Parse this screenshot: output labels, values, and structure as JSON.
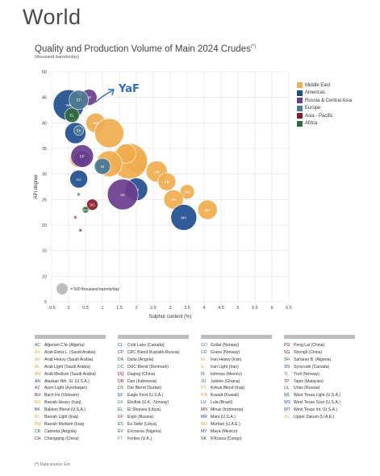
{
  "page": {
    "title": "World",
    "subtitle": "Quality and Production Volume of Main 2024 Crudes",
    "subtitle_note": "(*)",
    "units": "(thousand barrels/day)",
    "source": "(*) Data source: Eni"
  },
  "colors": {
    "Middle East": "#f0ad4e",
    "Americas": "#1f4e8f",
    "Russia & Central Asia": "#6a3d8e",
    "Europe": "#4e7c90",
    "Asia - Pacific": "#8b1c2a",
    "Africa": "#2f6b3a"
  },
  "chart_data": {
    "type": "scatter",
    "xlabel": "Sulphur content (%)",
    "ylabel": "API degree",
    "xlim": [
      -0.5,
      6.5
    ],
    "ylim": [
      5,
      50
    ],
    "xticks": [
      "-0.5",
      "0",
      "0.5",
      "1",
      "1.5",
      "2",
      "2.5",
      "3",
      "3.5",
      "4",
      "4.5",
      "5",
      "5.5",
      "6",
      "6.5"
    ],
    "yticks": [
      "5",
      "10",
      "15",
      "20",
      "25",
      "30",
      "35",
      "40",
      "45",
      "50"
    ],
    "size_legend": "= 500 thousand barrels/day",
    "legend_placement": "top-right",
    "annotation": "YaF",
    "series": [
      {
        "name": "Middle East",
        "points": [
          {
            "label": "ZU",
            "x": 2.0,
            "y": 32.5
          },
          {
            "label": "AL",
            "x": 1.8,
            "y": 32.5
          },
          {
            "label": "AM",
            "x": 2.6,
            "y": 30.5
          },
          {
            "label": "KB",
            "x": 2.9,
            "y": 28.5
          },
          {
            "label": "BM",
            "x": 3.5,
            "y": 26.5
          },
          {
            "label": "AH",
            "x": 3.1,
            "y": 25
          },
          {
            "label": "BH",
            "x": 4.1,
            "y": 23
          },
          {
            "label": "MU",
            "x": 0.8,
            "y": 40
          },
          {
            "label": "",
            "x": 1.2,
            "y": 38
          },
          {
            "label": "",
            "x": 1.7,
            "y": 34
          },
          {
            "label": "",
            "x": 1.2,
            "y": 32
          },
          {
            "label": "",
            "x": 0.3,
            "y": 33
          }
        ]
      },
      {
        "name": "Americas",
        "points": [
          {
            "label": "MV",
            "x": 3.4,
            "y": 21.5
          },
          {
            "label": "MX",
            "x": 2.0,
            "y": 27
          },
          {
            "label": "WL",
            "x": 0.0,
            "y": 43.5
          },
          {
            "label": "LU",
            "x": 0.3,
            "y": 29
          },
          {
            "label": "",
            "x": 0.4,
            "y": 33
          },
          {
            "label": "",
            "x": 0.2,
            "y": 38
          }
        ]
      },
      {
        "name": "Russia & Central Asia",
        "points": [
          {
            "label": "CP",
            "x": 0.6,
            "y": 45
          },
          {
            "label": "UL",
            "x": 1.6,
            "y": 26
          },
          {
            "label": "EP",
            "x": 0.4,
            "y": 33.5
          }
        ]
      },
      {
        "name": "Europe",
        "points": [
          {
            "label": "EF",
            "x": 0.3,
            "y": 44.5
          },
          {
            "label": "AN",
            "x": 1.0,
            "y": 31.5
          },
          {
            "label": "IS",
            "x": 1.0,
            "y": 31.5
          },
          {
            "label": "EK",
            "x": 0.3,
            "y": 38.5
          }
        ]
      },
      {
        "name": "Asia - Pacific",
        "points": [
          {
            "label": "SG",
            "x": 0.7,
            "y": 24
          },
          {
            "label": "DR",
            "x": 0.2,
            "y": 21.5
          },
          {
            "label": "PG",
            "x": 0.35,
            "y": 19
          }
        ]
      },
      {
        "name": "Africa",
        "points": [
          {
            "label": "DA",
            "x": 0.5,
            "y": 23
          },
          {
            "label": "DS",
            "x": 0.3,
            "y": 26
          },
          {
            "label": "EL",
            "x": 0.1,
            "y": 41.5
          }
        ]
      }
    ]
  },
  "key_columns": [
    [
      {
        "code": "AC",
        "name": "Algerian C'te (Algeria)",
        "cls": "green"
      },
      {
        "code": "AX",
        "name": "Arab Extra L. (Saudi Arabia)",
        "cls": "orange"
      },
      {
        "code": "AH",
        "name": "Arab Heavy (Saudi Arabia)",
        "cls": "orange"
      },
      {
        "code": "AL",
        "name": "Arab Light (Saudi Arabia)",
        "cls": "orange"
      },
      {
        "code": "AM",
        "name": "Arab Medium (Saudi Arabia)",
        "cls": "orange"
      },
      {
        "code": "AN",
        "name": "Alaskan Nth. Sl. (U.S.A.)",
        "cls": "blue"
      },
      {
        "code": "AZ",
        "name": "Azeri Light (Azerbaijan)",
        "cls": "purple"
      },
      {
        "code": "BH",
        "name": "Bach Ho (Vietnam)",
        "cls": "red"
      },
      {
        "code": "BH",
        "name": "Basrah Heavy (Iraq)",
        "cls": "orange"
      },
      {
        "code": "BK",
        "name": "Bakken Blend (U.S.A.)",
        "cls": "blue"
      },
      {
        "code": "BL",
        "name": "Basrah Light (Iraq)",
        "cls": "orange"
      },
      {
        "code": "BM",
        "name": "Basrah Medium (Iraq)",
        "cls": "orange"
      },
      {
        "code": "CB",
        "name": "Cabinda (Angola)",
        "cls": "green"
      },
      {
        "code": "CH",
        "name": "Changqing (China)",
        "cls": "red"
      }
    ],
    [
      {
        "code": "CL",
        "name": "Cold Lake (Canada)",
        "cls": "blue"
      },
      {
        "code": "CP",
        "name": "CPC Blend (Kazakh-Russia)",
        "cls": "purple"
      },
      {
        "code": "DA",
        "name": "Dalia (Angola)",
        "cls": "green"
      },
      {
        "code": "DC",
        "name": "DUC Blend (Denmark)",
        "cls": "steel"
      },
      {
        "code": "DQ",
        "name": "Daqing (China)",
        "cls": "red"
      },
      {
        "code": "DR",
        "name": "Duri (Indonesia)",
        "cls": "red"
      },
      {
        "code": "DS",
        "name": "Dar Blend (Sudan)",
        "cls": "green"
      },
      {
        "code": "EF",
        "name": "Eagle Ford (U.S.A.)",
        "cls": "blue"
      },
      {
        "code": "EK",
        "name": "Ekofisk (U.K., Norway)",
        "cls": "steel"
      },
      {
        "code": "EL",
        "name": "El Sharara (Libya)",
        "cls": "green"
      },
      {
        "code": "EP",
        "name": "Espo (Russia)",
        "cls": "purple"
      },
      {
        "code": "ES",
        "name": "Es Sider (Libya)",
        "cls": "green"
      },
      {
        "code": "EV",
        "name": "Escravos (Nigeria)",
        "cls": "green"
      },
      {
        "code": "FT",
        "name": "Forties (U.K.)",
        "cls": "steel"
      }
    ],
    [
      {
        "code": "GO",
        "name": "Goliat (Norway)",
        "cls": "steel"
      },
      {
        "code": "GR",
        "name": "Grane (Norway)",
        "cls": "steel"
      },
      {
        "code": "IH",
        "name": "Iran Heavy (Iran)",
        "cls": "orange"
      },
      {
        "code": "IL",
        "name": "Iran Light (Iran)",
        "cls": "orange"
      },
      {
        "code": "IS",
        "name": "Isthmus (Mexico)",
        "cls": "blue"
      },
      {
        "code": "JU",
        "name": "Jubilee (Ghana)",
        "cls": "green"
      },
      {
        "code": "KY",
        "name": "Kirkuk Blend (Iraq)",
        "cls": "orange"
      },
      {
        "code": "KW",
        "name": "Kuwait (Kuwait)",
        "cls": "orange"
      },
      {
        "code": "LU",
        "name": "Lula (Brazil)",
        "cls": "blue"
      },
      {
        "code": "MN",
        "name": "Minas (Indonesia)",
        "cls": "red"
      },
      {
        "code": "MR",
        "name": "Mars (U.S.A.)",
        "cls": "blue"
      },
      {
        "code": "MU",
        "name": "Murban (U.A.E.)",
        "cls": "orange"
      },
      {
        "code": "MY",
        "name": "Maya (Mexico)",
        "cls": "blue"
      },
      {
        "code": "NK",
        "name": "N'Kossa (Congo)",
        "cls": "green"
      }
    ],
    [
      {
        "code": "PG",
        "name": "Peng Lai (China)",
        "cls": "red"
      },
      {
        "code": "SG",
        "name": "Shengli (China)",
        "cls": "red"
      },
      {
        "code": "SH",
        "name": "Saharan B. (Algeria)",
        "cls": "green"
      },
      {
        "code": "SN",
        "name": "Syncrude (Canada)",
        "cls": "blue"
      },
      {
        "code": "TL",
        "name": "Troll (Norway)",
        "cls": "steel"
      },
      {
        "code": "TP",
        "name": "Tapis (Malaysia)",
        "cls": "red"
      },
      {
        "code": "UL",
        "name": "Urals (Russia)",
        "cls": "purple"
      },
      {
        "code": "WL",
        "name": "West Texas Light (U.S.A.)",
        "cls": "blue"
      },
      {
        "code": "WS",
        "name": "West Texas Sour (U.S.A.)",
        "cls": "blue"
      },
      {
        "code": "WT",
        "name": "West Texas Int. (U.S.A.)",
        "cls": "blue"
      },
      {
        "code": "ZU",
        "name": "Upper Zakum (U.A.E.)",
        "cls": "orange"
      }
    ]
  ]
}
